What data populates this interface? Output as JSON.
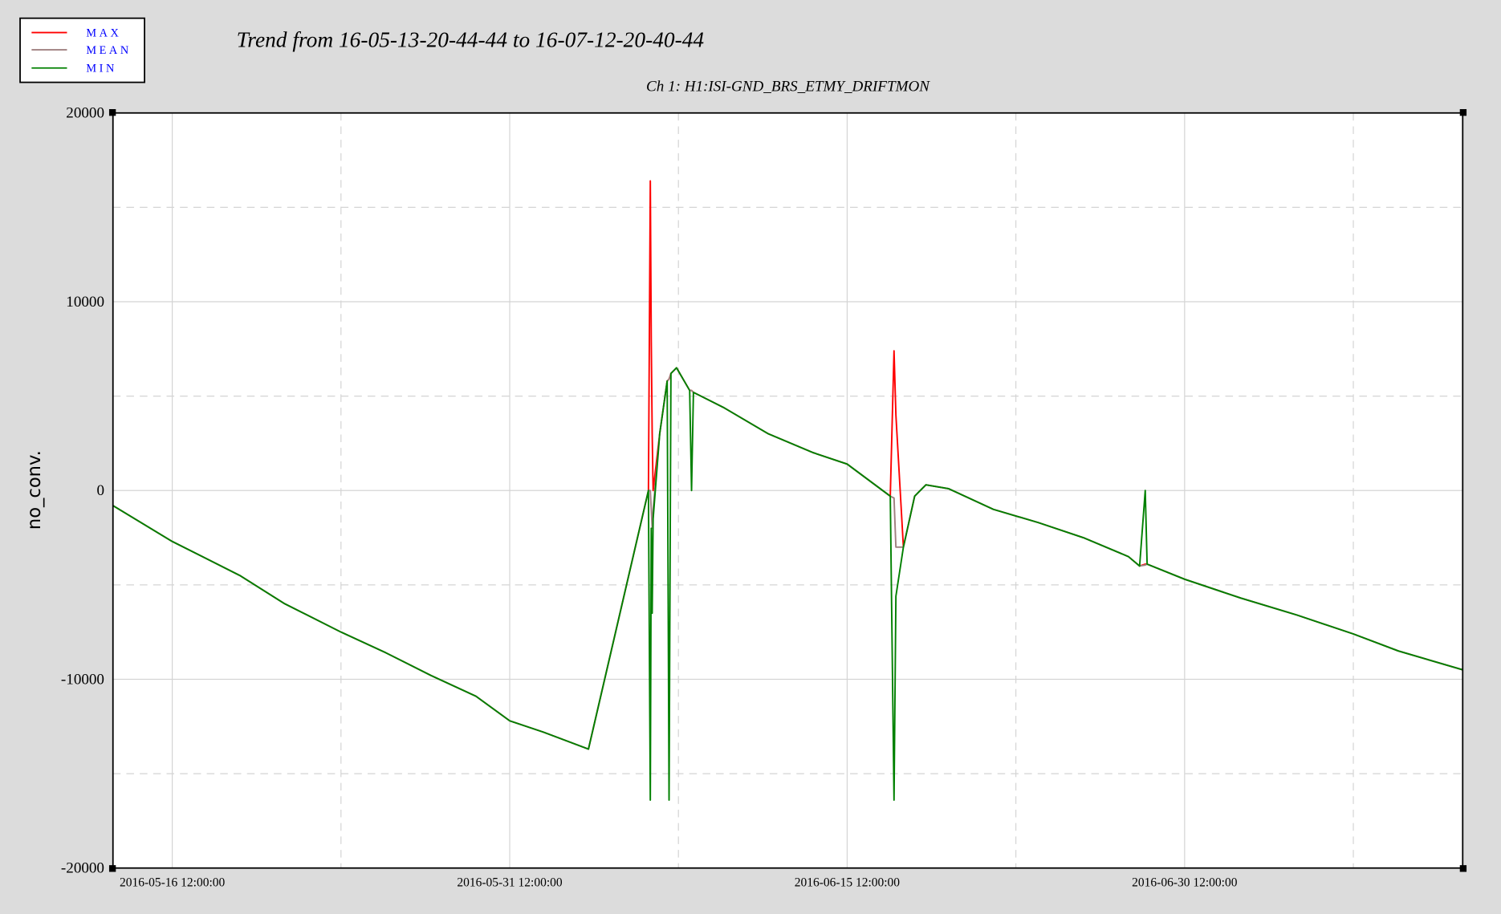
{
  "chart_data": {
    "type": "line",
    "title": "Trend from 16-05-13-20-44-44 to 16-07-12-20-40-44",
    "subtitle": "Ch 1: H1:ISI-GND_BRS_ETMY_DRIFTMON",
    "y_label": "no_conv.",
    "xlim": [
      "2016-05-13 20:44:44",
      "2016-07-12 20:40:44"
    ],
    "xticks": [
      "2016-05-16 12:00:00",
      "2016-05-31 12:00:00",
      "2016-06-15 12:00:00",
      "2016-06-30 12:00:00"
    ],
    "xminorticks": [
      "2016-05-24 00:00:00",
      "2016-06-08 00:00:00",
      "2016-06-23 00:00:00",
      "2016-07-08 00:00:00"
    ],
    "ylim": [
      -20000,
      20000
    ],
    "yticks": [
      -20000,
      -10000,
      0,
      10000,
      20000
    ],
    "yminorticks": [
      -15000,
      -5000,
      5000,
      15000
    ],
    "grid": true,
    "legend_position": "top-left",
    "x": [
      "2016-05-13 20:44:44",
      "2016-05-16 12:00:00",
      "2016-05-19 12:00:00",
      "2016-05-21 12:00:00",
      "2016-05-24 00:00:00",
      "2016-05-26 00:00:00",
      "2016-05-28 00:00:00",
      "2016-05-30 00:00:00",
      "2016-05-31 12:00:00",
      "2016-06-02 00:00:00",
      "2016-06-04 00:00:00",
      "2016-06-06 16:00:00",
      "2016-06-06 18:00:00",
      "2016-06-06 19:00:00",
      "2016-06-06 20:00:00",
      "2016-06-06 21:00:00",
      "2016-06-07 04:00:00",
      "2016-06-07 12:00:00",
      "2016-06-07 14:00:00",
      "2016-06-07 16:00:00",
      "2016-06-07 22:00:00",
      "2016-06-08 12:00:00",
      "2016-06-08 14:00:00",
      "2016-06-08 16:00:00",
      "2016-06-10 00:00:00",
      "2016-06-12 00:00:00",
      "2016-06-14 00:00:00",
      "2016-06-15 12:00:00",
      "2016-06-17 10:00:00",
      "2016-06-17 14:00:00",
      "2016-06-17 16:00:00",
      "2016-06-18 00:00:00",
      "2016-06-18 12:00:00",
      "2016-06-19 00:00:00",
      "2016-06-20 00:00:00",
      "2016-06-22 00:00:00",
      "2016-06-24 00:00:00",
      "2016-06-26 00:00:00",
      "2016-06-28 00:00:00",
      "2016-06-28 12:00:00",
      "2016-06-28 18:00:00",
      "2016-06-28 20:00:00",
      "2016-06-30 12:00:00",
      "2016-07-03 00:00:00",
      "2016-07-05 12:00:00",
      "2016-07-08 00:00:00",
      "2016-07-10 00:00:00",
      "2016-07-12 20:40:44"
    ],
    "series": [
      {
        "name": "MAX",
        "color": "#ff0000",
        "values": [
          -800,
          -2700,
          -4500,
          -6000,
          -7500,
          -8600,
          -9800,
          -10900,
          -12200,
          -12800,
          -13700,
          0,
          16400,
          8000,
          3000,
          0,
          3000,
          5800,
          5900,
          6200,
          6500,
          5300,
          5300,
          5200,
          4400,
          3000,
          2000,
          1400,
          -300,
          7400,
          4000,
          -3000,
          -300,
          300,
          100,
          -1000,
          -1700,
          -2500,
          -3500,
          -4000,
          -3900,
          -3900,
          -4700,
          -5700,
          -6600,
          -7600,
          -8500,
          -9500
        ]
      },
      {
        "name": "MEAN",
        "color": "#a08080",
        "values": [
          -800,
          -2700,
          -4500,
          -6000,
          -7500,
          -8600,
          -9800,
          -10900,
          -12200,
          -12800,
          -13700,
          0,
          0,
          -1000,
          -2000,
          -1000,
          3000,
          5800,
          5900,
          6200,
          6500,
          5300,
          5300,
          5200,
          4400,
          3000,
          2000,
          1400,
          -300,
          -400,
          -3000,
          -3000,
          -300,
          300,
          100,
          -1000,
          -1700,
          -2500,
          -3500,
          -4000,
          -3950,
          -3900,
          -4700,
          -5700,
          -6600,
          -7600,
          -8500,
          -9500
        ]
      },
      {
        "name": "MIN",
        "color": "#008000",
        "values": [
          -800,
          -2700,
          -4500,
          -6000,
          -7500,
          -8600,
          -9800,
          -10900,
          -12200,
          -12800,
          -13700,
          0,
          -16400,
          -2000,
          -6500,
          -1500,
          3000,
          5800,
          -16400,
          6200,
          6500,
          5300,
          0,
          5200,
          4400,
          3000,
          2000,
          1400,
          -300,
          -16400,
          -5600,
          -3000,
          -300,
          300,
          100,
          -1000,
          -1700,
          -2500,
          -3500,
          -4000,
          0,
          -3900,
          -4700,
          -5700,
          -6600,
          -7600,
          -8500,
          -9500
        ]
      }
    ]
  }
}
